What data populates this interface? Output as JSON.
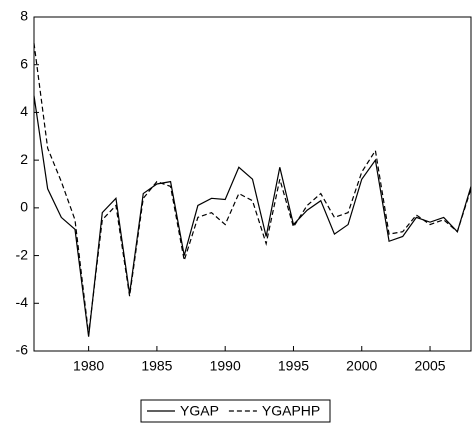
{
  "chart_data": {
    "type": "line",
    "x": [
      1976,
      1977,
      1978,
      1979,
      1980,
      1981,
      1982,
      1983,
      1984,
      1985,
      1986,
      1987,
      1988,
      1989,
      1990,
      1991,
      1992,
      1993,
      1994,
      1995,
      1996,
      1997,
      1998,
      1999,
      2000,
      2001,
      2002,
      2003,
      2004,
      2005,
      2006,
      2007,
      2008
    ],
    "series": [
      {
        "name": "YGAP",
        "color": "#000000",
        "dashed": false,
        "values": [
          4.7,
          0.8,
          -0.4,
          -0.9,
          -5.4,
          -0.2,
          0.4,
          -3.6,
          0.6,
          1.0,
          1.1,
          -2.0,
          0.1,
          0.4,
          0.35,
          1.7,
          1.2,
          -1.2,
          1.7,
          -0.7,
          -0.1,
          0.3,
          -1.1,
          -0.7,
          1.2,
          2.0,
          -1.4,
          -1.2,
          -0.4,
          -0.6,
          -0.4,
          -1.0,
          0.9
        ]
      },
      {
        "name": "YGAPHP",
        "color": "#000000",
        "dashed": true,
        "values": [
          6.9,
          2.5,
          1.1,
          -0.5,
          -5.3,
          -0.5,
          0.1,
          -3.7,
          0.4,
          1.1,
          0.9,
          -2.2,
          -0.4,
          -0.2,
          -0.7,
          0.6,
          0.3,
          -1.5,
          1.2,
          -0.8,
          0.1,
          0.6,
          -0.4,
          -0.2,
          1.5,
          2.4,
          -1.1,
          -1.0,
          -0.3,
          -0.7,
          -0.5,
          -1.0,
          0.8
        ]
      }
    ],
    "xlim": [
      1976,
      2008
    ],
    "xticks": [
      1980,
      1985,
      1990,
      1995,
      2000,
      2005
    ],
    "ylim": [
      -6,
      8
    ],
    "yticks": [
      -6,
      -4,
      -2,
      0,
      2,
      4,
      6,
      8
    ],
    "legend": "bottom"
  }
}
